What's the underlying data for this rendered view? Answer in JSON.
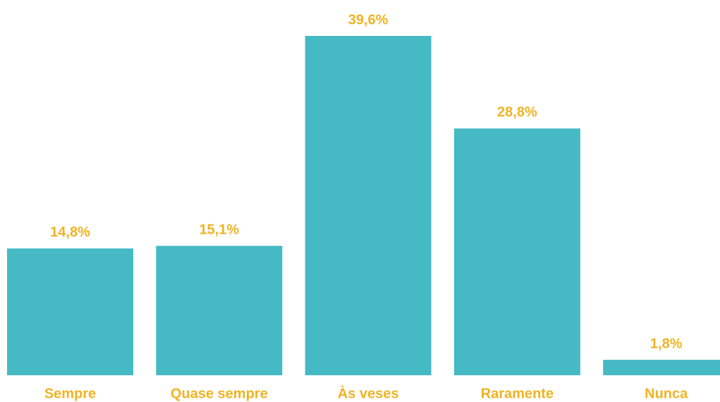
{
  "chart_data": {
    "type": "bar",
    "categories": [
      "Sempre",
      "Quase sempre",
      "Às veses",
      "Raramente",
      "Nunca"
    ],
    "values": [
      14.8,
      15.1,
      39.6,
      28.8,
      1.8
    ],
    "value_labels": [
      "14,8%",
      "15,1%",
      "39,6%",
      "28,8%",
      "1,8%"
    ],
    "color": "#45bac5"
  }
}
